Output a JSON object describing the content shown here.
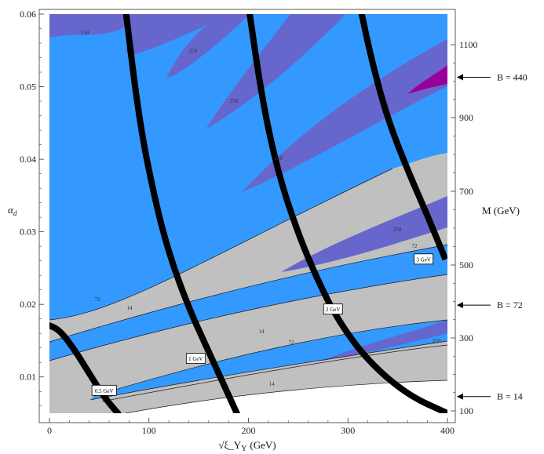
{
  "chart_data": {
    "type": "contour",
    "colors": {
      "region_lt14": "#ffffff",
      "region_14_72": "#c0c0c0",
      "region_72_250": "#3399ff",
      "region_250_440": "#6666cc",
      "region_gt440": "#990099",
      "mass_curves": "#000000"
    },
    "xlabel": "√ξ_Y",
    "xlabel_sym": "ξ",
    "xlabel_sub": "Y",
    "xlabel_unit": "(GeV)",
    "ylabel_main": "α",
    "ylabel_sub": "d",
    "y2label": "M (GeV)",
    "xlim": [
      0,
      400
    ],
    "ylim": [
      0.005,
      0.06
    ],
    "x_ticks": [
      "0",
      "100",
      "200",
      "300",
      "400"
    ],
    "y_ticks": [
      "0.01",
      "0.02",
      "0.03",
      "0.04",
      "0.05",
      "0.06"
    ],
    "y2_ticks": [
      "100",
      "300",
      "500",
      "700",
      "900",
      "1100"
    ],
    "contour_labels": [
      "250",
      "250",
      "250",
      "250",
      "250",
      "250",
      "72",
      "14",
      "14",
      "72",
      "14",
      "72",
      "250"
    ],
    "mass_curves": [
      {
        "label": "0.5 GeV",
        "points": [
          [
            -2,
            0.0172
          ],
          [
            10,
            0.0165
          ],
          [
            25,
            0.0138
          ],
          [
            40,
            0.0105
          ],
          [
            55,
            0.0072
          ],
          [
            70,
            0.0048
          ]
        ]
      },
      {
        "label": "1 GeV",
        "points": [
          [
            76,
            0.0612
          ],
          [
            90,
            0.0455
          ],
          [
            105,
            0.035
          ],
          [
            120,
            0.027
          ],
          [
            140,
            0.0195
          ],
          [
            160,
            0.0135
          ],
          [
            190,
            0.0045
          ]
        ]
      },
      {
        "label": "2 GeV",
        "points": [
          [
            200,
            0.0612
          ],
          [
            214,
            0.048
          ],
          [
            230,
            0.038
          ],
          [
            250,
            0.0297
          ],
          [
            270,
            0.0232
          ],
          [
            290,
            0.0178
          ],
          [
            320,
            0.0122
          ],
          [
            360,
            0.0075
          ],
          [
            400,
            0.005
          ]
        ]
      },
      {
        "label": "3 GeV",
        "points": [
          [
            312,
            0.0612
          ],
          [
            324,
            0.0535
          ],
          [
            340,
            0.0455
          ],
          [
            360,
            0.0385
          ],
          [
            380,
            0.0322
          ],
          [
            398,
            0.0262
          ]
        ]
      }
    ],
    "mass_label_values": [
      {
        "text": "0.5 GeV",
        "x": 55,
        "y": 0.0081
      },
      {
        "text": "1 GeV",
        "x": 147,
        "y": 0.0125
      },
      {
        "text": "2 GeV",
        "x": 285,
        "y": 0.0193
      },
      {
        "text": "3 GeV",
        "x": 376,
        "y": 0.0262
      }
    ],
    "b_lines": [
      {
        "label": "B = 440",
        "y": 0.0513
      },
      {
        "label": "B = 72",
        "y": 0.0199
      },
      {
        "label": "B = 14",
        "y": 0.0073
      }
    ]
  }
}
